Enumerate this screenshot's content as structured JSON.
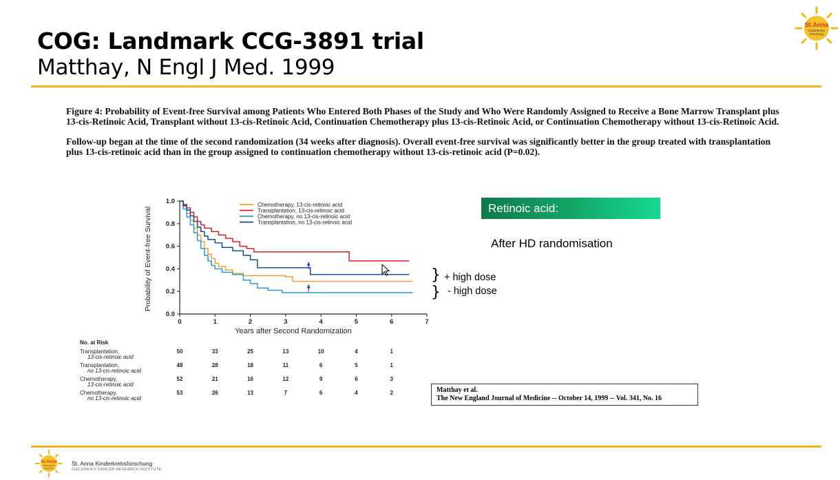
{
  "header": {
    "title": "COG: Landmark CCG-3891 trial",
    "subtitle": "Matthay, N Engl J Med. 1999"
  },
  "logo": {
    "line1": "St.Anna",
    "line2": "Kinderkrebs",
    "line3": "forschung"
  },
  "caption": {
    "para1": "Figure 4: Probability of Event-free Survival among Patients Who Entered Both Phases of the Study and Who Were Randomly Assigned to Receive a Bone Marrow Transplant plus 13-cis-Retinoic Acid, Transplant without 13-cis-Retinoic Acid, Continuation Chemotherapy plus 13-cis-Retinoic Acid, or Continuation Chemotherapy without 13-cis-Retinoic Acid.",
    "para2": "Follow-up began at the time of the second randomization (34 weeks after diagnosis). Overall event-free survival was significantly better in the group treated with transplantation plus 13-cis-retinoic acid than in the group assigned to continuation chemotherapy without 13-cis-retinoic acid (P=0.02)."
  },
  "annotations": {
    "retinoic_label": "Retinoic acid:",
    "after_hd": "After HD randomisation",
    "bracket_symbol": "}",
    "high_dose_plus": "+ high dose",
    "high_dose_minus": "- high dose"
  },
  "reference": {
    "line1": "Matthay et al.",
    "line2": "The New England Journal of Medicine -- October 14, 1999 -- Vol. 341, No. 16"
  },
  "footer": {
    "name": "St. Anna Kinderkrebsforschung",
    "sub": "CHILDREN'S CANCER RESEARCH INSTITUTE"
  },
  "colors": {
    "accent_rule": "#f2b417",
    "chemo_cra": "#f0a030",
    "transplant_cra": "#d6202a",
    "chemo_no_cra": "#2b9ad8",
    "transplant_no_cra": "#1a4c8c"
  },
  "chart_data": {
    "type": "line",
    "xlabel": "Years after Second Randomization",
    "ylabel": "Probability of Event-free Survival",
    "xlim": [
      0,
      7
    ],
    "ylim": [
      0,
      1
    ],
    "xticks": [
      0,
      1,
      2,
      3,
      4,
      5,
      6,
      7
    ],
    "yticks": [
      "0.0",
      "0.2",
      "0.4",
      "0.6",
      "0.8",
      "1.0"
    ],
    "legend_position": "top-center",
    "series": [
      {
        "name": "Chemotherapy, 13-cis-retinoic acid",
        "color_key": "chemo_cra",
        "points": [
          [
            0,
            1.0
          ],
          [
            0.1,
            0.95
          ],
          [
            0.2,
            0.89
          ],
          [
            0.3,
            0.83
          ],
          [
            0.4,
            0.76
          ],
          [
            0.5,
            0.7
          ],
          [
            0.6,
            0.64
          ],
          [
            0.7,
            0.58
          ],
          [
            0.8,
            0.53
          ],
          [
            0.9,
            0.49
          ],
          [
            1.0,
            0.45
          ],
          [
            1.1,
            0.42
          ],
          [
            1.3,
            0.39
          ],
          [
            1.5,
            0.36
          ],
          [
            1.8,
            0.34
          ],
          [
            2.0,
            0.34
          ],
          [
            2.5,
            0.34
          ],
          [
            3.0,
            0.33
          ],
          [
            3.2,
            0.29
          ],
          [
            4.0,
            0.29
          ],
          [
            5.0,
            0.29
          ],
          [
            6.0,
            0.29
          ],
          [
            6.6,
            0.29
          ]
        ]
      },
      {
        "name": "Transplantation, 13-cis-retinoic acid",
        "color_key": "transplant_cra",
        "points": [
          [
            0,
            1.0
          ],
          [
            0.1,
            0.97
          ],
          [
            0.2,
            0.94
          ],
          [
            0.3,
            0.9
          ],
          [
            0.4,
            0.86
          ],
          [
            0.5,
            0.82
          ],
          [
            0.6,
            0.79
          ],
          [
            0.7,
            0.76
          ],
          [
            0.9,
            0.73
          ],
          [
            1.1,
            0.7
          ],
          [
            1.3,
            0.67
          ],
          [
            1.5,
            0.64
          ],
          [
            1.7,
            0.6
          ],
          [
            1.9,
            0.58
          ],
          [
            2.1,
            0.55
          ],
          [
            3.0,
            0.55
          ],
          [
            4.0,
            0.55
          ],
          [
            4.7,
            0.55
          ],
          [
            4.8,
            0.47
          ],
          [
            5.5,
            0.47
          ],
          [
            6.0,
            0.47
          ],
          [
            6.5,
            0.47
          ]
        ]
      },
      {
        "name": "Chemotherapy, no 13-cis-retinoic acid",
        "color_key": "chemo_no_cra",
        "points": [
          [
            0,
            1.0
          ],
          [
            0.1,
            0.93
          ],
          [
            0.2,
            0.86
          ],
          [
            0.3,
            0.79
          ],
          [
            0.4,
            0.72
          ],
          [
            0.5,
            0.65
          ],
          [
            0.6,
            0.58
          ],
          [
            0.7,
            0.52
          ],
          [
            0.8,
            0.47
          ],
          [
            0.9,
            0.43
          ],
          [
            1.0,
            0.4
          ],
          [
            1.2,
            0.37
          ],
          [
            1.5,
            0.35
          ],
          [
            1.8,
            0.3
          ],
          [
            2.0,
            0.27
          ],
          [
            2.2,
            0.23
          ],
          [
            2.5,
            0.21
          ],
          [
            2.8,
            0.21
          ],
          [
            2.9,
            0.19
          ],
          [
            3.5,
            0.19
          ],
          [
            4.5,
            0.19
          ],
          [
            5.5,
            0.19
          ],
          [
            6.6,
            0.19
          ]
        ]
      },
      {
        "name": "Transplantation, no 13-cis-retinoic acid",
        "color_key": "transplant_no_cra",
        "points": [
          [
            0,
            1.0
          ],
          [
            0.1,
            0.96
          ],
          [
            0.2,
            0.92
          ],
          [
            0.3,
            0.87
          ],
          [
            0.4,
            0.82
          ],
          [
            0.5,
            0.77
          ],
          [
            0.6,
            0.73
          ],
          [
            0.7,
            0.69
          ],
          [
            0.8,
            0.66
          ],
          [
            1.0,
            0.63
          ],
          [
            1.2,
            0.59
          ],
          [
            1.5,
            0.56
          ],
          [
            1.8,
            0.52
          ],
          [
            2.0,
            0.48
          ],
          [
            2.2,
            0.45
          ],
          [
            2.2,
            0.41
          ],
          [
            3.0,
            0.41
          ],
          [
            3.6,
            0.41
          ],
          [
            3.7,
            0.35
          ],
          [
            4.5,
            0.35
          ],
          [
            5.5,
            0.35
          ],
          [
            6.5,
            0.35
          ]
        ]
      }
    ],
    "markers": [
      [
        3.65,
        0.41
      ],
      [
        3.65,
        0.21
      ]
    ],
    "risk_table": {
      "header": "No. at Risk",
      "times": [
        0,
        1,
        2,
        3,
        4,
        5,
        6
      ],
      "rows": [
        {
          "label1": "Transplantation,",
          "label2": "13-cis-retinoic acid",
          "values": [
            "50",
            "33",
            "25",
            "13",
            "10",
            "4",
            "1"
          ]
        },
        {
          "label1": "Transplantation,",
          "label2": "no 13-cis-retinoic acid",
          "values": [
            "48",
            "28",
            "18",
            "11",
            "6",
            "5",
            "1"
          ]
        },
        {
          "label1": "Chemotherapy,",
          "label2": "13-cis-retinoic acid",
          "values": [
            "52",
            "21",
            "16",
            "12",
            "9",
            "6",
            "3"
          ]
        },
        {
          "label1": "Chemotherapy,",
          "label2": "no 13-cis-retinoic acid",
          "values": [
            "53",
            "26",
            "13",
            "7",
            "6",
            "4",
            "2"
          ]
        }
      ]
    }
  }
}
